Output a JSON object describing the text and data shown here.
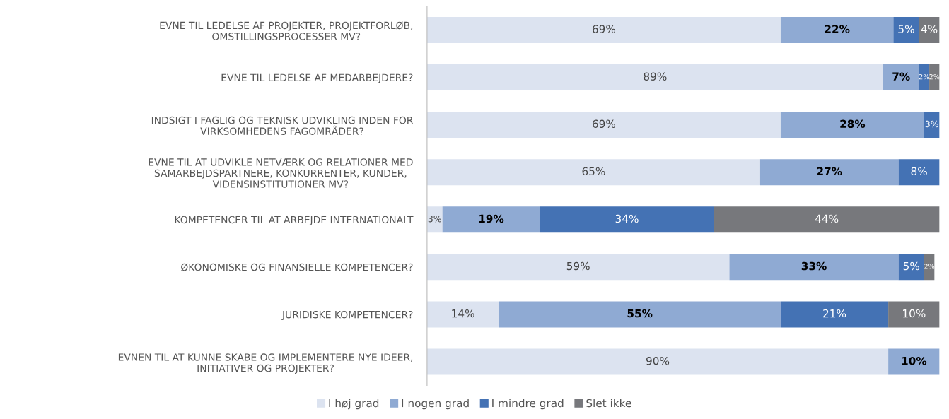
{
  "chart_data": {
    "type": "bar",
    "orientation": "horizontal",
    "stacked": true,
    "legend": "bottom",
    "grid": false,
    "categories": [
      "EVNE TIL LEDELSE AF PROJEKTER, PROJEKTFORLØB,\nOMSTILLINGSPROCESSER MV?",
      "EVNE TIL LEDELSE AF MEDARBEJDERE?",
      "INDSIGT I FAGLIG OG TEKNISK UDVIKLING INDEN FOR\nVIRKSOMHEDENS FAGOMRÅDER?",
      "EVNE TIL AT UDVIKLE NETVÆRK OG RELATIONER MED\nSAMARBEJDSPARTNERE, KONKURRENTER, KUNDER,\nVIDENSINSTITUTIONER MV?",
      "KOMPETENCER TIL AT ARBEJDE INTERNATIONALT",
      "ØKONOMISKE OG FINANSIELLE KOMPETENCER?",
      "JURIDISKE KOMPETENCER?",
      "EVNEN TIL AT KUNNE SKABE OG IMPLEMENTERE NYE IDEER,\nINITIATIVER OG PROJEKTER?"
    ],
    "series": [
      {
        "name": "I høj grad",
        "color": "#dce3f0",
        "values": [
          69,
          89,
          69,
          65,
          3,
          59,
          14,
          90
        ],
        "value_labels": [
          "69%",
          "89%",
          "69%",
          "65%",
          "3%",
          "59%",
          "14%",
          "90%"
        ]
      },
      {
        "name": "I nogen grad",
        "color": "#8faad3",
        "values": [
          22,
          7,
          28,
          27,
          19,
          33,
          55,
          10
        ],
        "value_labels": [
          "22%",
          "7%",
          "28%",
          "27%",
          "19%",
          "33%",
          "55%",
          "10%"
        ]
      },
      {
        "name": "I mindre grad",
        "color": "#4472b4",
        "values": [
          5,
          2,
          3,
          8,
          34,
          5,
          21,
          null
        ],
        "value_labels": [
          "5%",
          "2%",
          "3%",
          "8%",
          "34%",
          "5%",
          "21%",
          null
        ]
      },
      {
        "name": "Slet ikke",
        "color": "#77787c",
        "values": [
          4,
          2,
          null,
          null,
          44,
          2,
          10,
          null
        ],
        "value_labels": [
          "4%",
          "2%",
          null,
          null,
          "44%",
          "2%",
          "10%",
          null
        ]
      }
    ]
  }
}
